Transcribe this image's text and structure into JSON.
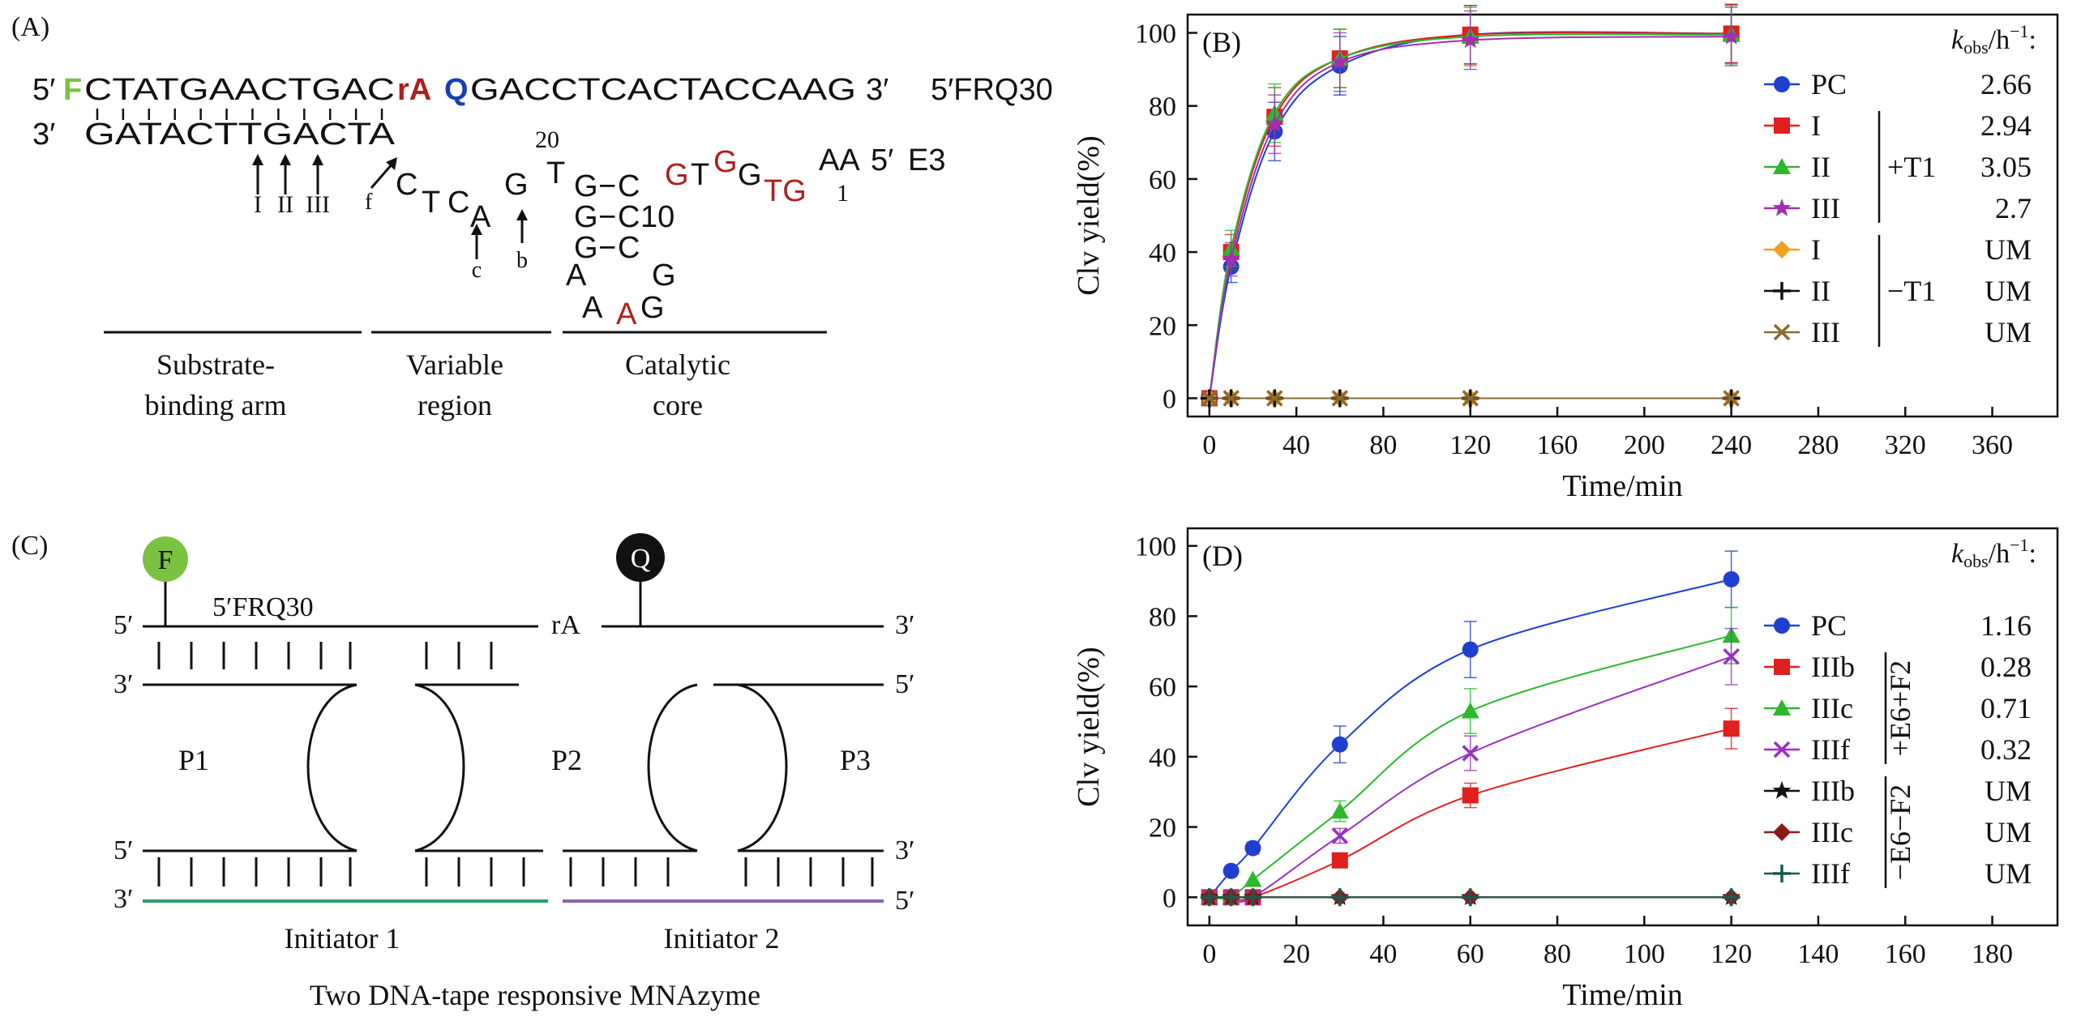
{
  "colors": {
    "red": "#b01e1e",
    "blue": "#1a3fb0",
    "green": "#7bc142",
    "black": "#111111"
  },
  "panelA": {
    "label": "(A)",
    "strand_label": "5′FRQ30",
    "e3_label": "E3",
    "top_5prime": "5′",
    "top_F": "F",
    "top_seq1": "CTATGAACTGAC",
    "top_rA": "rA",
    "top_Q": "Q",
    "top_seq2": "GACCTCACTACCAAG",
    "top_3prime": "3′",
    "bottom_3prime": "3′",
    "bottom_seq": "GATACTTGACTA",
    "markers": [
      "I",
      "II",
      "III"
    ],
    "marker_f": "f",
    "marker_c": "c",
    "marker_b": "b",
    "num_20": "20",
    "num_10": "10",
    "num_1": "1",
    "var_letters": [
      "C",
      "T",
      "C",
      "A",
      "G"
    ],
    "core_T": "T",
    "core_rows": [
      {
        "left": "G",
        "dash": "−",
        "right": "C"
      },
      {
        "left": "G",
        "dash": "−",
        "right": "C"
      },
      {
        "left": "G",
        "dash": "−",
        "right": "C"
      }
    ],
    "arm_tail": {
      "G1": "G",
      "T1": "T",
      "G2": "G",
      "G3": "G",
      "TG": "TG",
      "AA": "AA",
      "five": "5′"
    },
    "loop": {
      "A1": "A",
      "A2": "A",
      "A3": "A",
      "G1": "G",
      "G2": "G"
    },
    "regions": [
      {
        "line1": "Substrate-",
        "line2": "binding arm"
      },
      {
        "line1": "Variable",
        "line2": "region"
      },
      {
        "line1": "Catalytic",
        "line2": "core"
      }
    ]
  },
  "panelC": {
    "label": "(C)",
    "F": "F",
    "Q": "Q",
    "substrate_label": "5′FRQ30",
    "rA": "rA",
    "five": "5′",
    "three": "3′",
    "P1": "P1",
    "P2": "P2",
    "P3": "P3",
    "initiator1": "Initiator 1",
    "initiator2": "Initiator 2",
    "caption": "Two DNA-tape responsive MNAzyme",
    "initiator1_color": "#2e9a6b",
    "initiator2_color": "#8a63b0"
  },
  "chart_data": [
    {
      "panel": "(B)",
      "type": "line",
      "xlabel": "Time/min",
      "ylabel": "Clv yield(%)",
      "xlim": [
        -10,
        390
      ],
      "ylim": [
        -5,
        105
      ],
      "xticks": [
        0,
        40,
        80,
        120,
        160,
        200,
        240,
        280,
        320,
        360
      ],
      "yticks": [
        0,
        20,
        40,
        60,
        80,
        100
      ],
      "kobs_header": {
        "k": "k",
        "sub": "obs",
        "unit": "/h",
        "sup": "−1",
        "colon": ":"
      },
      "group_labels": [
        {
          "text": "+T1"
        },
        {
          "text": "−T1"
        }
      ],
      "series": [
        {
          "name": "PC",
          "kobs": "2.66",
          "color": "#1f3fd0",
          "marker": "circle",
          "x": [
            0,
            10,
            30,
            60,
            120,
            240
          ],
          "y": [
            0,
            36,
            73,
            91,
            99.5,
            99.8
          ]
        },
        {
          "name": "I",
          "kobs": "2.94",
          "color": "#e01f1f",
          "marker": "square",
          "x": [
            0,
            10,
            30,
            60,
            120,
            240
          ],
          "y": [
            0,
            40,
            77,
            93,
            99.5,
            99.8
          ]
        },
        {
          "name": "II",
          "kobs": "3.05",
          "color": "#2db82d",
          "marker": "triangle",
          "x": [
            0,
            10,
            30,
            60,
            120,
            240
          ],
          "y": [
            0,
            41,
            78,
            93,
            99,
            99.5
          ]
        },
        {
          "name": "III",
          "kobs": "2.7",
          "color": "#a030b0",
          "marker": "star",
          "x": [
            0,
            10,
            30,
            60,
            120,
            240
          ],
          "y": [
            0,
            38,
            75,
            92,
            98,
            99
          ]
        },
        {
          "name": "I",
          "kobs": "UM",
          "color": "#f0a020",
          "marker": "diamond",
          "x": [
            0,
            10,
            30,
            60,
            120,
            240
          ],
          "y": [
            0,
            0,
            0,
            0,
            0,
            0
          ]
        },
        {
          "name": "II",
          "kobs": "UM",
          "color": "#111111",
          "marker": "plus",
          "x": [
            0,
            10,
            30,
            60,
            120,
            240
          ],
          "y": [
            0,
            0,
            0,
            0,
            0,
            0
          ]
        },
        {
          "name": "III",
          "kobs": "UM",
          "color": "#8a6a30",
          "marker": "x",
          "x": [
            0,
            10,
            30,
            60,
            120,
            240
          ],
          "y": [
            0,
            0,
            0,
            0,
            0,
            0
          ]
        }
      ]
    },
    {
      "panel": "(D)",
      "type": "line",
      "xlabel": "Time/min",
      "ylabel": "Clv yield(%)",
      "xlim": [
        -5,
        195
      ],
      "ylim": [
        -8,
        105
      ],
      "xticks": [
        0,
        20,
        40,
        60,
        80,
        100,
        120,
        140,
        160,
        180
      ],
      "yticks": [
        0,
        20,
        40,
        60,
        80,
        100
      ],
      "kobs_header": {
        "k": "k",
        "sub": "obs",
        "unit": "/h",
        "sup": "−1",
        "colon": ":"
      },
      "group_labels": [
        {
          "text": "+E6+F2"
        },
        {
          "text": "−E6−F2"
        }
      ],
      "series": [
        {
          "name": "PC",
          "kobs": "1.16",
          "color": "#1f3fd0",
          "marker": "circle",
          "x": [
            0,
            5,
            10,
            30,
            60,
            120
          ],
          "y": [
            0,
            7.5,
            14,
            43.5,
            70.5,
            90.5
          ]
        },
        {
          "name": "IIIb",
          "kobs": "0.28",
          "color": "#e01f1f",
          "marker": "square",
          "x": [
            0,
            5,
            10,
            30,
            60,
            120
          ],
          "y": [
            0,
            0,
            0,
            10.5,
            29,
            48
          ]
        },
        {
          "name": "IIIc",
          "kobs": "0.71",
          "color": "#2db82d",
          "marker": "triangle",
          "x": [
            0,
            5,
            10,
            30,
            60,
            120
          ],
          "y": [
            0,
            0,
            5,
            24.5,
            53,
            74.5
          ]
        },
        {
          "name": "IIIf",
          "kobs": "0.32",
          "color": "#9a30c0",
          "marker": "x",
          "x": [
            0,
            5,
            10,
            30,
            60,
            120
          ],
          "y": [
            0,
            0,
            0,
            17.5,
            41,
            68.5
          ]
        },
        {
          "name": "IIIb",
          "kobs": "UM",
          "color": "#111111",
          "marker": "star",
          "x": [
            0,
            5,
            10,
            30,
            60,
            120
          ],
          "y": [
            0,
            0,
            0,
            0,
            0,
            0
          ]
        },
        {
          "name": "IIIc",
          "kobs": "UM",
          "color": "#8a1a1a",
          "marker": "diamond",
          "x": [
            0,
            5,
            10,
            30,
            60,
            120
          ],
          "y": [
            0,
            0,
            0,
            0,
            0,
            0
          ]
        },
        {
          "name": "IIIf",
          "kobs": "UM",
          "color": "#1a5a4a",
          "marker": "plus",
          "x": [
            0,
            5,
            10,
            30,
            60,
            120
          ],
          "y": [
            0,
            0,
            0,
            0,
            0,
            0
          ]
        }
      ]
    }
  ]
}
